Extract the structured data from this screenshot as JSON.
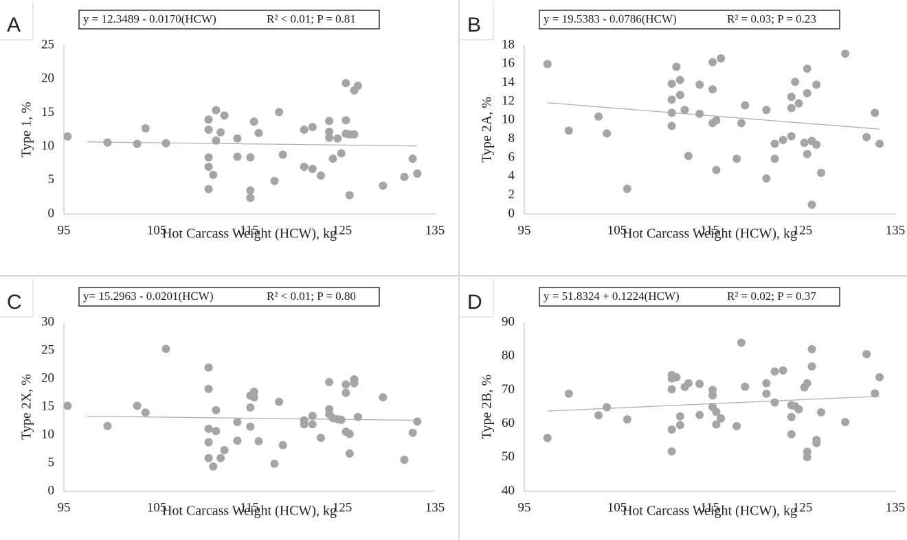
{
  "chart_data": [
    {
      "type": "scatter",
      "panel": "A",
      "equation": "y = 12.3489 - 0.0170(HCW)",
      "stats": "R² < 0.01; P = 0.81",
      "xlabel": "Hot Carcass Weight (HCW), kg",
      "ylabel": "Type 1, %",
      "color": "#a5a5a5",
      "trend_color": "#b0b0b0",
      "x": [
        95.4,
        99.7,
        102.9,
        103.8,
        106.0,
        110.6,
        110.6,
        110.6,
        110.6,
        110.6,
        111.1,
        111.4,
        111.4,
        111.9,
        112.3,
        113.7,
        113.7,
        115.1,
        115.1,
        115.1,
        115.5,
        116.0,
        117.7,
        118.2,
        118.6,
        120.9,
        120.9,
        121.8,
        121.8,
        122.7,
        123.6,
        123.6,
        123.6,
        124.0,
        124.5,
        124.9,
        125.4,
        125.4,
        125.4,
        125.8,
        125.8,
        126.3,
        126.3,
        126.7,
        129.4,
        131.7,
        132.6,
        133.1
      ],
      "y": [
        11.5,
        10.6,
        10.4,
        12.7,
        10.5,
        14.0,
        12.5,
        8.4,
        7.0,
        3.7,
        5.8,
        15.4,
        10.9,
        12.1,
        14.6,
        11.2,
        8.5,
        8.4,
        3.5,
        2.4,
        13.7,
        12.0,
        4.9,
        15.1,
        8.8,
        12.5,
        7.0,
        12.9,
        6.7,
        5.7,
        13.8,
        12.2,
        11.3,
        8.2,
        11.2,
        9.0,
        19.4,
        13.9,
        11.9,
        11.8,
        2.8,
        11.8,
        18.3,
        19.0,
        4.2,
        5.5,
        8.2,
        6.0
      ],
      "trendline": {
        "x": [
          97.5,
          133.1
        ],
        "y": [
          10.69,
          10.09
        ]
      },
      "xlim": [
        95,
        135
      ],
      "xticks": [
        95,
        105,
        115,
        125,
        135
      ],
      "ylim": [
        0,
        25
      ],
      "yticks": [
        0,
        5,
        10,
        15,
        20,
        25
      ]
    },
    {
      "type": "scatter",
      "panel": "B",
      "equation": "y = 19.5383 - 0.0786(HCW)",
      "stats": "R² = 0.03; P = 0.23",
      "xlabel": "Hot Carcass Weight (HCW), kg",
      "ylabel": "Type 2A, %",
      "color": "#a5a5a5",
      "trend_color": "#b0b0b0",
      "x": [
        97.5,
        99.8,
        103.0,
        103.9,
        106.1,
        110.9,
        110.9,
        110.9,
        110.9,
        111.4,
        111.8,
        111.8,
        112.3,
        112.7,
        113.9,
        113.9,
        115.3,
        115.3,
        115.3,
        115.7,
        115.7,
        116.2,
        117.9,
        118.4,
        118.8,
        121.1,
        121.1,
        122.0,
        122.0,
        122.9,
        123.8,
        123.8,
        123.8,
        124.2,
        124.6,
        125.2,
        125.5,
        125.5,
        125.5,
        126.0,
        126.0,
        126.5,
        126.5,
        127.0,
        129.6,
        131.9,
        132.8,
        133.3
      ],
      "y": [
        16.0,
        8.9,
        10.4,
        8.6,
        2.7,
        13.9,
        12.2,
        10.8,
        9.4,
        15.7,
        14.3,
        12.7,
        11.1,
        6.2,
        13.8,
        10.7,
        16.2,
        13.3,
        9.7,
        10.0,
        4.7,
        16.6,
        5.9,
        9.7,
        11.6,
        11.1,
        3.8,
        7.5,
        5.9,
        7.9,
        12.5,
        11.3,
        8.3,
        14.1,
        11.8,
        7.6,
        15.5,
        12.9,
        6.4,
        7.8,
        1.0,
        13.8,
        7.4,
        4.4,
        17.1,
        8.2,
        10.8,
        7.5
      ],
      "trendline": {
        "x": [
          97.5,
          133.3
        ],
        "y": [
          11.87,
          9.06
        ]
      },
      "xlim": [
        95,
        135
      ],
      "xticks": [
        95,
        105,
        115,
        125,
        135
      ],
      "ylim": [
        0,
        18
      ],
      "yticks": [
        0,
        2,
        4,
        6,
        8,
        10,
        12,
        14,
        16,
        18
      ]
    },
    {
      "type": "scatter",
      "panel": "C",
      "equation": "y= 15.2963 - 0.0201(HCW)",
      "stats": "R² < 0.01; P = 0.80",
      "xlabel": "Hot Carcass Weight (HCW), kg",
      "ylabel": "Type 2X, %",
      "color": "#a5a5a5",
      "trend_color": "#b0b0b0",
      "x": [
        95.4,
        99.7,
        102.9,
        103.8,
        106.0,
        110.6,
        110.6,
        110.6,
        110.6,
        110.6,
        111.1,
        111.4,
        111.4,
        111.9,
        112.3,
        113.7,
        113.7,
        115.1,
        115.1,
        115.1,
        115.5,
        115.5,
        116.0,
        117.7,
        118.2,
        118.6,
        120.9,
        120.9,
        121.8,
        121.8,
        122.7,
        123.6,
        123.6,
        123.6,
        124.0,
        124.5,
        124.9,
        125.4,
        125.4,
        125.4,
        125.8,
        125.8,
        126.3,
        126.3,
        126.7,
        129.4,
        131.7,
        132.6,
        133.1
      ],
      "y": [
        15.2,
        11.6,
        15.2,
        14.0,
        25.3,
        22.0,
        18.2,
        11.1,
        8.7,
        5.9,
        4.4,
        14.4,
        10.7,
        5.9,
        7.3,
        12.3,
        9.0,
        17.0,
        14.9,
        11.5,
        17.7,
        16.7,
        8.9,
        4.9,
        15.9,
        8.2,
        12.6,
        11.9,
        13.4,
        11.9,
        9.5,
        19.4,
        14.6,
        13.7,
        13.0,
        12.8,
        12.7,
        19.0,
        17.5,
        10.6,
        10.2,
        6.7,
        19.9,
        19.2,
        13.2,
        16.7,
        5.6,
        10.4,
        12.4
      ],
      "trendline": {
        "x": [
          97.5,
          133.1
        ],
        "y": [
          13.34,
          12.62
        ]
      },
      "xlim": [
        95,
        135
      ],
      "xticks": [
        95,
        105,
        115,
        125,
        135
      ],
      "ylim": [
        0,
        30
      ],
      "yticks": [
        0,
        5,
        10,
        15,
        20,
        25,
        30
      ]
    },
    {
      "type": "scatter",
      "panel": "D",
      "equation": "y = 51.8324 + 0.1224(HCW)",
      "stats": "R² = 0.02; P = 0.37",
      "xlabel": "Hot Carcass Weight (HCW), kg",
      "ylabel": "Type 2B, %",
      "color": "#a5a5a5",
      "trend_color": "#b0b0b0",
      "x": [
        97.5,
        99.8,
        103.0,
        103.9,
        106.1,
        110.9,
        110.9,
        110.9,
        110.9,
        110.9,
        111.4,
        111.8,
        111.8,
        112.3,
        112.7,
        113.9,
        113.9,
        115.3,
        115.3,
        115.3,
        115.7,
        115.7,
        116.2,
        117.9,
        118.4,
        118.8,
        121.1,
        121.1,
        122.0,
        122.0,
        122.9,
        123.8,
        123.8,
        123.8,
        124.2,
        124.6,
        125.2,
        125.5,
        125.5,
        125.5,
        126.0,
        126.0,
        126.5,
        126.5,
        127.0,
        129.6,
        131.9,
        132.8,
        133.3
      ],
      "y": [
        55.8,
        68.9,
        62.5,
        64.9,
        61.3,
        74.4,
        73.4,
        70.2,
        58.3,
        51.8,
        73.8,
        62.2,
        59.6,
        70.9,
        72.0,
        71.8,
        62.6,
        70.0,
        68.4,
        65.0,
        63.5,
        59.8,
        61.6,
        59.3,
        84.0,
        71.0,
        72.0,
        68.9,
        75.5,
        66.3,
        75.8,
        65.5,
        62.0,
        56.9,
        65.2,
        64.3,
        70.8,
        72.0,
        51.7,
        50.1,
        82.1,
        77.0,
        55.2,
        54.3,
        63.4,
        60.5,
        80.6,
        69.0,
        73.8
      ],
      "trendline": {
        "x": [
          97.5,
          133.3
        ],
        "y": [
          63.77,
          68.15
        ]
      },
      "xlim": [
        95,
        135
      ],
      "xticks": [
        95,
        105,
        115,
        125,
        135
      ],
      "ylim": [
        40,
        90
      ],
      "yticks": [
        40,
        50,
        60,
        70,
        80,
        90
      ]
    }
  ]
}
